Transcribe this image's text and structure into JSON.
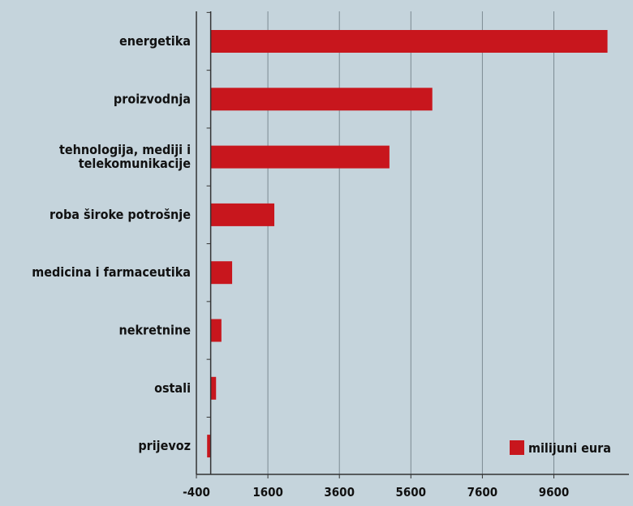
{
  "chart_data": {
    "type": "bar",
    "orientation": "horizontal",
    "categories": [
      "energetika",
      "proizvodnja",
      "tehnologija, mediji i telekomunikacije",
      "roba široke potrošnje",
      "medicina i farmaceutika",
      "nekretnine",
      "ostali",
      "prijevoz"
    ],
    "category_lines": [
      [
        "energetika"
      ],
      [
        "proizvodnja"
      ],
      [
        "tehnologija, mediji i",
        "telekomunikacije"
      ],
      [
        "roba široke potrošnje"
      ],
      [
        "medicina i farmaceutika"
      ],
      [
        "nekretnine"
      ],
      [
        "ostali"
      ],
      [
        "prijevoz"
      ]
    ],
    "series": [
      {
        "name": "milijuni eura",
        "values": [
          11100,
          6200,
          5000,
          1780,
          600,
          300,
          150,
          -100
        ]
      }
    ],
    "xlim": [
      -400,
      11700
    ],
    "xticks": [
      -400,
      1600,
      3600,
      5600,
      7600,
      9600
    ],
    "grid": true,
    "legend_position": "bottom-right",
    "colors": {
      "bar": "#c8161d",
      "background": "#c5d4dc",
      "grid": "#7c8a92",
      "axis": "#333333"
    }
  }
}
